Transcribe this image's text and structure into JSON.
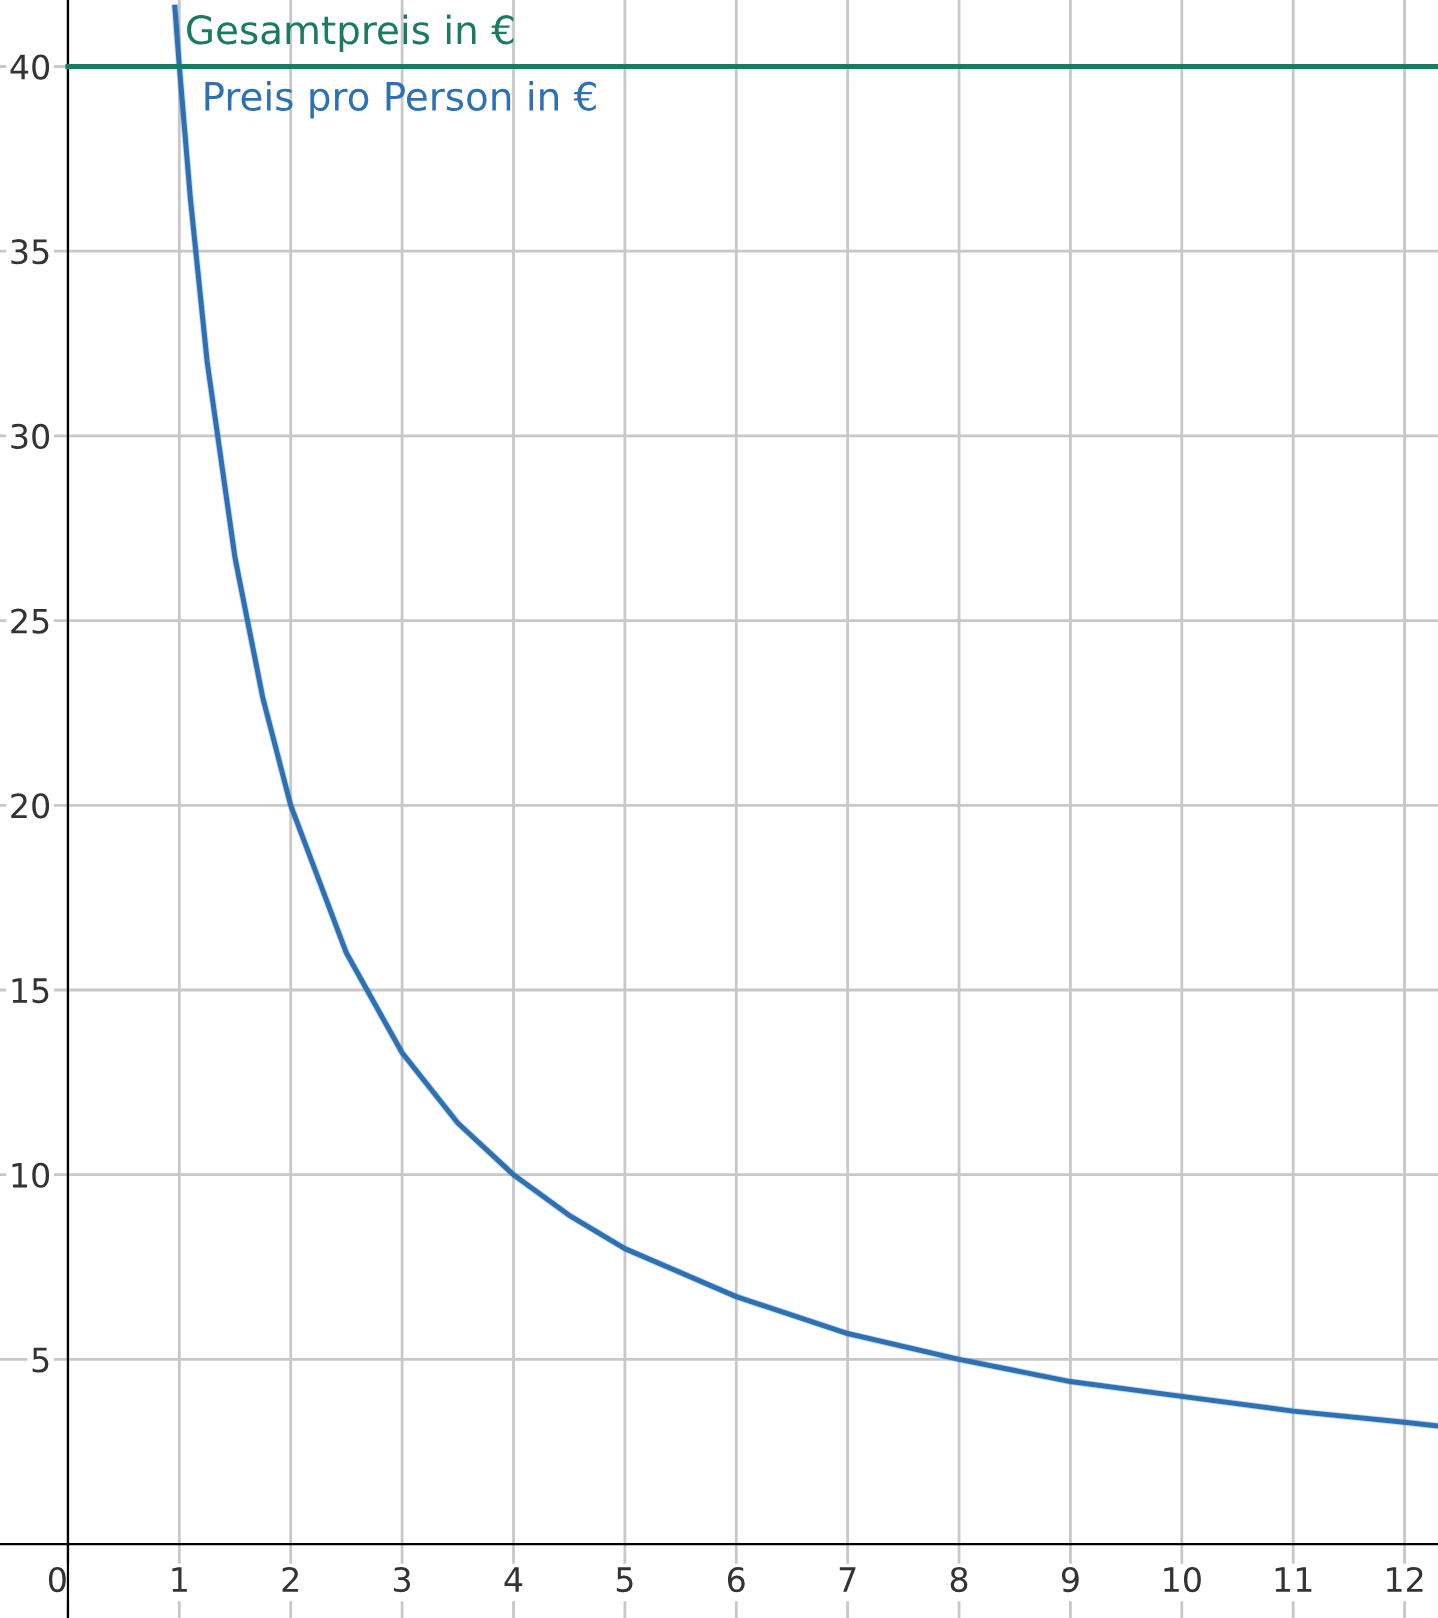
{
  "chart_data": {
    "type": "line",
    "x": [
      0.96,
      1,
      1.1,
      1.25,
      1.5,
      1.75,
      2,
      2.5,
      3,
      3.5,
      4,
      4.5,
      5,
      6,
      7,
      8,
      9,
      10,
      11,
      12,
      12.3
    ],
    "series": [
      {
        "name": "Preis pro Person in €",
        "color": "#2d70b3",
        "values": [
          41.6,
          40,
          36.4,
          32,
          26.7,
          22.9,
          20,
          16,
          13.3,
          11.4,
          10,
          8.9,
          8,
          6.7,
          5.7,
          5,
          4.4,
          4,
          3.6,
          3.3,
          3.2
        ]
      }
    ],
    "ref_lines": [
      {
        "axis": "y",
        "value": 40,
        "label": "Gesamtpreis in €",
        "color": "#1b7a62",
        "line_style": "solid"
      }
    ],
    "xlim": [
      -0.61,
      12.3
    ],
    "ylim": [
      -2,
      41.8
    ],
    "xticks": [
      0,
      1,
      2,
      3,
      4,
      5,
      6,
      7,
      8,
      9,
      10,
      11,
      12
    ],
    "yticks": [
      5,
      10,
      15,
      20,
      25,
      30,
      35,
      40
    ],
    "grid": true,
    "marker": "none",
    "line_style": "solid",
    "legend": false
  }
}
